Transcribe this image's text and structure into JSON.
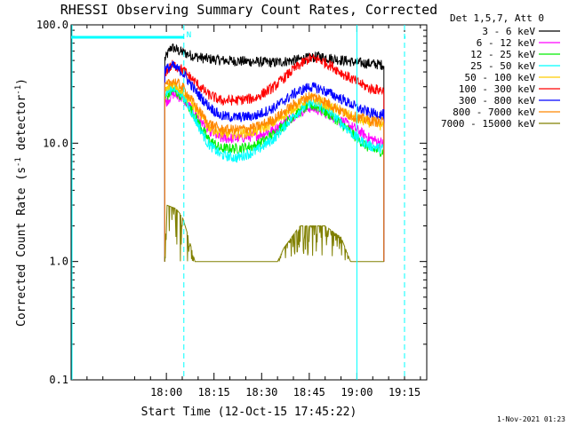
{
  "chart_data": {
    "type": "line",
    "title": "RHESSI Observing Summary Count Rates, Corrected",
    "xlabel": "Start Time (12-Oct-15 17:45:22)",
    "ylabel_main": "Corrected Count Rate (s",
    "ylabel_sup1": "-1",
    "ylabel_mid": " detector",
    "ylabel_sup2": "-1",
    "ylabel_end": ")",
    "yscale": "log",
    "ylim": [
      0.1,
      100.0
    ],
    "xlim_minutes": [
      -30,
      82
    ],
    "y_ticks": [
      {
        "value": 100.0,
        "label": "100.0"
      },
      {
        "value": 10.0,
        "label": "10.0"
      },
      {
        "value": 1.0,
        "label": "1.0"
      },
      {
        "value": 0.1,
        "label": "0.1"
      }
    ],
    "x_ticks": [
      {
        "minutes": 0,
        "label": "18:00"
      },
      {
        "minutes": 15,
        "label": "18:15"
      },
      {
        "minutes": 30,
        "label": "18:30"
      },
      {
        "minutes": 45,
        "label": "18:45"
      },
      {
        "minutes": 60,
        "label": "19:00"
      },
      {
        "minutes": 75,
        "label": "19:15"
      }
    ],
    "legend_header": "Det 1,5,7, Att 0",
    "legend_position": "top-right, outside plot",
    "data_start_minute": -0.5,
    "data_end_minute": 68.5,
    "series": [
      {
        "name": "3 - 6 keV",
        "color": "#000000",
        "values": [
          [
            -0.3,
            52
          ],
          [
            1.5,
            65
          ],
          [
            4,
            60
          ],
          [
            8,
            55
          ],
          [
            12,
            52
          ],
          [
            18,
            50
          ],
          [
            26,
            49
          ],
          [
            34,
            48
          ],
          [
            40,
            50
          ],
          [
            44,
            52
          ],
          [
            48,
            54
          ],
          [
            52,
            52
          ],
          [
            56,
            50
          ],
          [
            60,
            48
          ],
          [
            64,
            47
          ],
          [
            68,
            46
          ]
        ]
      },
      {
        "name": "6 - 12 keV",
        "color": "#ff00ff",
        "values": [
          [
            -0.3,
            22
          ],
          [
            2,
            26
          ],
          [
            5,
            24
          ],
          [
            9,
            18
          ],
          [
            13,
            13
          ],
          [
            17,
            11
          ],
          [
            22,
            11
          ],
          [
            28,
            11.5
          ],
          [
            34,
            13
          ],
          [
            40,
            17
          ],
          [
            45,
            20
          ],
          [
            48,
            19
          ],
          [
            52,
            17
          ],
          [
            56,
            15
          ],
          [
            60,
            13
          ],
          [
            64,
            11
          ],
          [
            68,
            10
          ]
        ]
      },
      {
        "name": "12 - 25 keV",
        "color": "#00ee00",
        "values": [
          [
            -0.3,
            24
          ],
          [
            2,
            28
          ],
          [
            5,
            25
          ],
          [
            9,
            17
          ],
          [
            13,
            11
          ],
          [
            17,
            9
          ],
          [
            22,
            9
          ],
          [
            28,
            9.5
          ],
          [
            34,
            12
          ],
          [
            40,
            17
          ],
          [
            45,
            21
          ],
          [
            48,
            20
          ],
          [
            52,
            17
          ],
          [
            56,
            14
          ],
          [
            60,
            11
          ],
          [
            64,
            9
          ],
          [
            68,
            8.5
          ]
        ]
      },
      {
        "name": "25 - 50 keV",
        "color": "#00ffff",
        "values": [
          [
            -0.3,
            26
          ],
          [
            2,
            30
          ],
          [
            5,
            26
          ],
          [
            9,
            16
          ],
          [
            13,
            10
          ],
          [
            17,
            8
          ],
          [
            22,
            7.5
          ],
          [
            28,
            8.5
          ],
          [
            34,
            11
          ],
          [
            40,
            17
          ],
          [
            45,
            22
          ],
          [
            48,
            21
          ],
          [
            52,
            18
          ],
          [
            56,
            14
          ],
          [
            60,
            11
          ],
          [
            64,
            9.5
          ],
          [
            68,
            9
          ]
        ]
      },
      {
        "name": "50 - 100 keV",
        "color": "#ffcc00",
        "values": [
          [
            -0.3,
            28
          ],
          [
            2,
            32
          ],
          [
            5,
            28
          ],
          [
            9,
            20
          ],
          [
            13,
            14
          ],
          [
            17,
            12
          ],
          [
            22,
            12
          ],
          [
            28,
            12.5
          ],
          [
            34,
            15
          ],
          [
            40,
            20
          ],
          [
            45,
            24
          ],
          [
            48,
            23
          ],
          [
            52,
            20
          ],
          [
            56,
            18
          ],
          [
            60,
            16
          ],
          [
            64,
            15
          ],
          [
            68,
            14
          ]
        ]
      },
      {
        "name": "100 - 300 keV",
        "color": "#ff0000",
        "values": [
          [
            -0.3,
            40
          ],
          [
            2,
            46
          ],
          [
            5,
            42
          ],
          [
            9,
            33
          ],
          [
            13,
            26
          ],
          [
            17,
            23
          ],
          [
            22,
            23
          ],
          [
            28,
            24
          ],
          [
            34,
            30
          ],
          [
            40,
            42
          ],
          [
            45,
            52
          ],
          [
            48,
            51
          ],
          [
            52,
            45
          ],
          [
            56,
            38
          ],
          [
            60,
            33
          ],
          [
            64,
            29
          ],
          [
            68,
            28
          ]
        ]
      },
      {
        "name": "300 - 800 keV",
        "color": "#0000ff",
        "values": [
          [
            -0.3,
            42
          ],
          [
            2,
            45
          ],
          [
            5,
            40
          ],
          [
            9,
            28
          ],
          [
            13,
            21
          ],
          [
            17,
            17
          ],
          [
            22,
            16.5
          ],
          [
            28,
            17
          ],
          [
            34,
            20
          ],
          [
            40,
            26
          ],
          [
            45,
            30
          ],
          [
            48,
            29
          ],
          [
            52,
            26
          ],
          [
            56,
            23
          ],
          [
            60,
            20
          ],
          [
            64,
            18
          ],
          [
            68,
            17.5
          ]
        ]
      },
      {
        "name": "800 - 7000 keV",
        "color": "#ff8800",
        "values": [
          [
            -0.3,
            30
          ],
          [
            2,
            34
          ],
          [
            5,
            30
          ],
          [
            9,
            21
          ],
          [
            13,
            15
          ],
          [
            17,
            13
          ],
          [
            22,
            13
          ],
          [
            28,
            13.5
          ],
          [
            34,
            16
          ],
          [
            40,
            21
          ],
          [
            45,
            25
          ],
          [
            48,
            24
          ],
          [
            52,
            21
          ],
          [
            56,
            18
          ],
          [
            60,
            16.5
          ],
          [
            64,
            15.5
          ],
          [
            68,
            15
          ]
        ]
      },
      {
        "name": "7000 - 15000 keV",
        "color": "#808000",
        "values": [
          [
            -0.3,
            1.4
          ],
          [
            0,
            3.0
          ],
          [
            3,
            2.8
          ],
          [
            5,
            2.4
          ],
          [
            7,
            1.6
          ],
          [
            9,
            1.0
          ],
          [
            15,
            1.0
          ],
          [
            25,
            1.0
          ],
          [
            35,
            1.0
          ],
          [
            37,
            1.3
          ],
          [
            42,
            2.0
          ],
          [
            50,
            2.0
          ],
          [
            55,
            1.6
          ],
          [
            58,
            1.0
          ],
          [
            68,
            1.0
          ]
        ]
      }
    ],
    "annotations": {
      "marker_label": "N",
      "cyan_intervals_minutes": [
        [
          -30,
          5.5
        ],
        [
          75,
          91
        ]
      ],
      "cyan_dashed_lines_minutes": [
        5.5,
        75
      ],
      "cyan_solid_lines_minutes": [
        -30,
        60
      ]
    }
  },
  "footer": {
    "timestamp": "1-Nov-2021 01:23"
  },
  "colors": {
    "axes": "#000000",
    "background": "#ffffff",
    "cyan": "#00ffff"
  }
}
